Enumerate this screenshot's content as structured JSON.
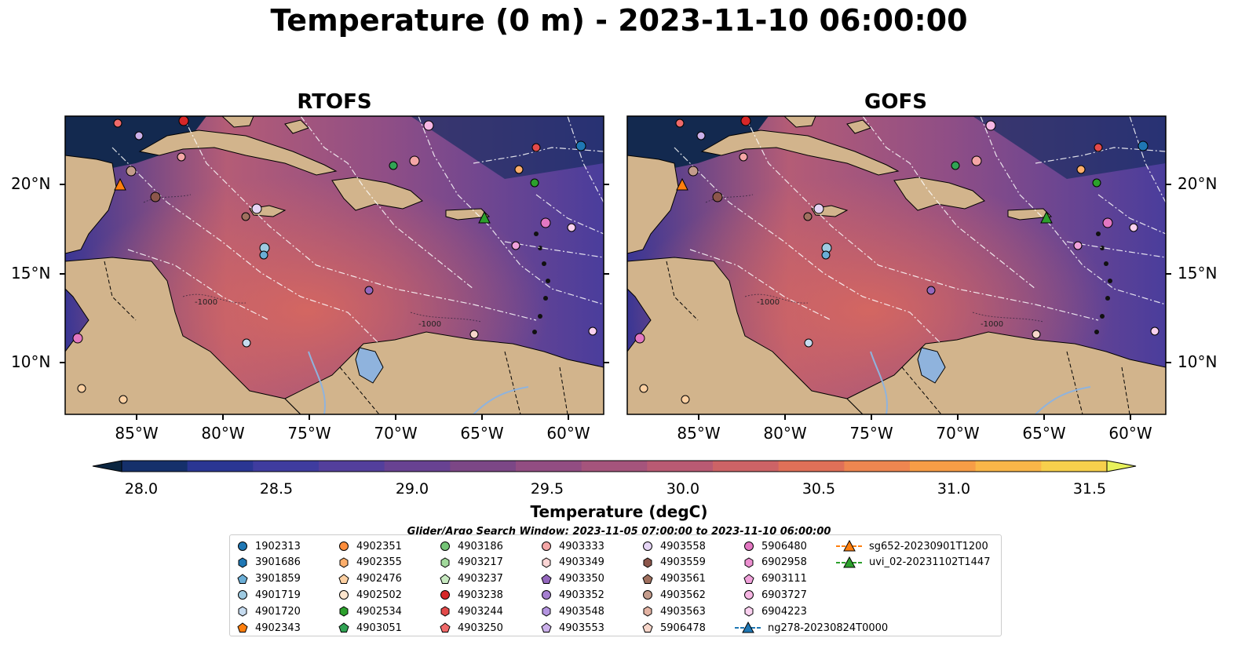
{
  "figure": {
    "title": "Temperature (0 m) - 2023-11-10 06:00:00",
    "panels": [
      {
        "name": "RTOFS"
      },
      {
        "name": "GOFS"
      }
    ],
    "lat_ticks": [
      "20°N",
      "15°N",
      "10°N"
    ],
    "lon_ticks": [
      "85°W",
      "80°W",
      "75°W",
      "70°W",
      "65°W",
      "60°W"
    ],
    "bathymetry_labels": [
      "-1000",
      "-1000"
    ]
  },
  "colorbar": {
    "label": "Temperature (degC)",
    "ticks": [
      "28.0",
      "28.5",
      "29.0",
      "29.5",
      "30.0",
      "30.5",
      "31.0",
      "31.5"
    ],
    "colors": [
      "#0b2540",
      "#15306b",
      "#2a3693",
      "#3f3c9f",
      "#533f9c",
      "#684292",
      "#7c4786",
      "#924d82",
      "#a5547c",
      "#b95a73",
      "#cd6366",
      "#df7058",
      "#ee8650",
      "#f79d46",
      "#fab648",
      "#f7d04c",
      "#e8f25c"
    ]
  },
  "search_window": "Glider/Argo Search Window: 2023-11-05 07:00:00 to 2023-11-10 06:00:00",
  "legend": {
    "items": [
      {
        "label": "1902313",
        "marker": "circle",
        "color": "#1f77b4"
      },
      {
        "label": "3901686",
        "marker": "hexagon",
        "color": "#1f77b4"
      },
      {
        "label": "3901859",
        "marker": "pentagon",
        "color": "#6baed6"
      },
      {
        "label": "4901719",
        "marker": "circle",
        "color": "#9ecae1"
      },
      {
        "label": "4901720",
        "marker": "hexagon",
        "color": "#c6dbef"
      },
      {
        "label": "4902343",
        "marker": "pentagon",
        "color": "#ff7f0e"
      },
      {
        "label": "4902351",
        "marker": "circle",
        "color": "#fd8d3c"
      },
      {
        "label": "4902355",
        "marker": "hexagon",
        "color": "#fdae6b"
      },
      {
        "label": "4902476",
        "marker": "pentagon",
        "color": "#fdd0a2"
      },
      {
        "label": "4902502",
        "marker": "circle",
        "color": "#fee6ce"
      },
      {
        "label": "4902534",
        "marker": "hexagon",
        "color": "#2ca02c"
      },
      {
        "label": "4903051",
        "marker": "pentagon",
        "color": "#31a354"
      },
      {
        "label": "4903186",
        "marker": "circle",
        "color": "#74c476"
      },
      {
        "label": "4903217",
        "marker": "hexagon",
        "color": "#a1d99b"
      },
      {
        "label": "4903237",
        "marker": "pentagon",
        "color": "#c7e9c0"
      },
      {
        "label": "4903238",
        "marker": "circle",
        "color": "#d62728"
      },
      {
        "label": "4903244",
        "marker": "hexagon",
        "color": "#e34a4a"
      },
      {
        "label": "4903250",
        "marker": "pentagon",
        "color": "#f06a6a"
      },
      {
        "label": "4903333",
        "marker": "circle",
        "color": "#f4a6a6"
      },
      {
        "label": "4903349",
        "marker": "hexagon",
        "color": "#fcd5d5"
      },
      {
        "label": "4903350",
        "marker": "pentagon",
        "color": "#9467bd"
      },
      {
        "label": "4903352",
        "marker": "circle",
        "color": "#a57fd0"
      },
      {
        "label": "4903548",
        "marker": "hexagon",
        "color": "#b494e0"
      },
      {
        "label": "4903553",
        "marker": "pentagon",
        "color": "#cbb0ea"
      },
      {
        "label": "4903558",
        "marker": "circle",
        "color": "#e5d5f5"
      },
      {
        "label": "4903559",
        "marker": "hexagon",
        "color": "#8c564b"
      },
      {
        "label": "4903561",
        "marker": "pentagon",
        "color": "#a0705f"
      },
      {
        "label": "4903562",
        "marker": "circle",
        "color": "#c49c8c"
      },
      {
        "label": "4903563",
        "marker": "hexagon",
        "color": "#e3b3a3"
      },
      {
        "label": "5906478",
        "marker": "pentagon",
        "color": "#f7d6ca"
      },
      {
        "label": "5906480",
        "marker": "circle",
        "color": "#e377c2"
      },
      {
        "label": "6902958",
        "marker": "hexagon",
        "color": "#ec8fd0"
      },
      {
        "label": "6903111",
        "marker": "pentagon",
        "color": "#f0a1da"
      },
      {
        "label": "6903727",
        "marker": "circle",
        "color": "#f6b6e3"
      },
      {
        "label": "6904223",
        "marker": "hexagon",
        "color": "#fad0ef"
      },
      {
        "label": "ng278-20230824T0000",
        "marker": "triangle-line",
        "color": "#1f77b4"
      },
      {
        "label": "sg652-20230901T1200",
        "marker": "triangle-line",
        "color": "#ff7f0e"
      },
      {
        "label": "uvi_02-20231102T1447",
        "marker": "triangle-line",
        "color": "#2ca02c"
      }
    ]
  }
}
